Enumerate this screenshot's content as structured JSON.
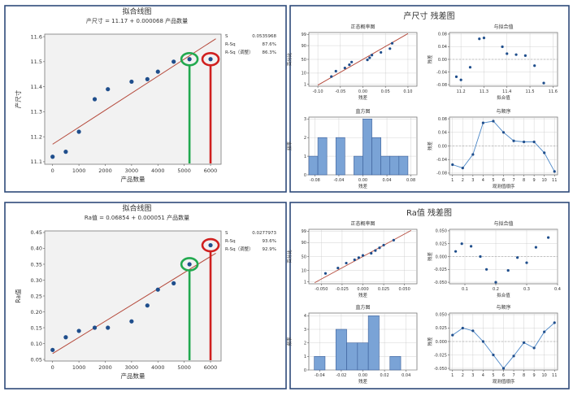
{
  "colors": {
    "frame": "#2e4a7a",
    "plot_bg": "#f2f2f2",
    "point": "#1f4e8c",
    "fit_line": "#b54a3c",
    "bar_fill": "#7aa3d6",
    "bar_stroke": "#3b5f99",
    "series_line": "#4a86c6",
    "grid": "#c8c8c8",
    "green_marker": "#22a94f",
    "red_marker": "#d0201f"
  },
  "chart_data": [
    {
      "type": "scatter",
      "id": "fit-top",
      "title": "拟合线图",
      "subtitle": "产尺寸 = 11.17 + 0.000068 产品数量",
      "xlabel": "产品数量",
      "ylabel": "产尺寸",
      "xlim": [
        -300,
        6400
      ],
      "ylim": [
        11.09,
        11.61
      ],
      "xticks": [
        0,
        1000,
        2000,
        3000,
        4000,
        5000,
        6000
      ],
      "yticks": [
        11.1,
        11.2,
        11.3,
        11.4,
        11.5,
        11.6
      ],
      "ytick_labels": [
        "11.1",
        "11.2",
        "11.3",
        "11.4",
        "11.5",
        "11.6"
      ],
      "points": [
        [
          0,
          11.12
        ],
        [
          500,
          11.14
        ],
        [
          1000,
          11.22
        ],
        [
          1600,
          11.35
        ],
        [
          2100,
          11.39
        ],
        [
          3000,
          11.42
        ],
        [
          3600,
          11.43
        ],
        [
          4000,
          11.46
        ],
        [
          4600,
          11.5
        ],
        [
          5200,
          11.51
        ],
        [
          6000,
          11.51
        ]
      ],
      "fit": {
        "intercept": 11.17,
        "slope": 6.8e-05,
        "x_range": [
          0,
          6200
        ]
      },
      "stats": [
        [
          "S",
          "0.0535968"
        ],
        [
          "R-Sq",
          "87.6%"
        ],
        [
          "R-Sq（调整）",
          "86.3%"
        ]
      ],
      "highlights": [
        {
          "x": 5200,
          "y": 11.51,
          "color": "green"
        },
        {
          "x": 6000,
          "y": 11.51,
          "color": "red"
        }
      ]
    },
    {
      "type": "scatter",
      "id": "fit-bottom",
      "title": "拟合线图",
      "subtitle": "Ra值 = 0.06854 + 0.000051 产品数量",
      "xlabel": "产品数量",
      "ylabel": "Ra值",
      "xlim": [
        -300,
        6400
      ],
      "ylim": [
        0.045,
        0.455
      ],
      "xticks": [
        0,
        1000,
        2000,
        3000,
        4000,
        5000,
        6000
      ],
      "yticks": [
        0.05,
        0.1,
        0.15,
        0.2,
        0.25,
        0.3,
        0.35,
        0.4,
        0.45
      ],
      "ytick_labels": [
        "0.05",
        "0.10",
        "0.15",
        "0.20",
        "0.25",
        "0.30",
        "0.35",
        "0.40",
        "0.45"
      ],
      "points": [
        [
          0,
          0.08
        ],
        [
          500,
          0.12
        ],
        [
          1000,
          0.14
        ],
        [
          1600,
          0.15
        ],
        [
          2100,
          0.15
        ],
        [
          3000,
          0.17
        ],
        [
          3600,
          0.22
        ],
        [
          4000,
          0.27
        ],
        [
          4600,
          0.29
        ],
        [
          5200,
          0.35
        ],
        [
          6000,
          0.41
        ]
      ],
      "fit": {
        "intercept": 0.06854,
        "slope": 5.1e-05,
        "x_range": [
          0,
          6200
        ]
      },
      "stats": [
        [
          "S",
          "0.0277973"
        ],
        [
          "R-Sq",
          "93.6%"
        ],
        [
          "R-Sq（调整）",
          "92.9%"
        ]
      ],
      "highlights": [
        {
          "x": 5200,
          "y": 0.35,
          "color": "green"
        },
        {
          "x": 6000,
          "y": 0.41,
          "color": "red"
        }
      ]
    },
    {
      "type": "scatter",
      "id": "rt-normal",
      "title": "正态概率图",
      "xlabel": "残差",
      "ylabel": "百分比",
      "xlim": [
        -0.12,
        0.12
      ],
      "ylim": [
        -2.5,
        2.5
      ],
      "xticks": [
        -0.1,
        -0.05,
        0,
        0.05,
        0.1
      ],
      "xtick_labels": [
        "-0.10",
        "-0.05",
        "0.00",
        "0.05",
        "0.10"
      ],
      "yscale": "normal-probability",
      "yticks": [
        1,
        10,
        50,
        90,
        99
      ],
      "ytick_labels": [
        "1",
        "10",
        "50",
        "90",
        "99"
      ],
      "points": [
        [
          -0.07,
          -1.6
        ],
        [
          -0.06,
          -1.1
        ],
        [
          -0.04,
          -0.8
        ],
        [
          -0.03,
          -0.5
        ],
        [
          -0.025,
          -0.25
        ],
        [
          0.01,
          -0.05
        ],
        [
          0.015,
          0.15
        ],
        [
          0.02,
          0.4
        ],
        [
          0.04,
          0.65
        ],
        [
          0.06,
          1.0
        ],
        [
          0.065,
          1.5
        ]
      ],
      "line": [
        [
          -0.1,
          -2.4
        ],
        [
          0.1,
          2.4
        ]
      ]
    },
    {
      "type": "scatter",
      "id": "rt-fits",
      "title": "与拟合值",
      "xlabel": "拟合值",
      "ylabel": "残差",
      "xlim": [
        11.15,
        11.62
      ],
      "ylim": [
        -0.085,
        0.085
      ],
      "xticks": [
        11.2,
        11.3,
        11.4,
        11.5,
        11.6
      ],
      "xtick_labels": [
        "11.2",
        "11.3",
        "11.4",
        "11.5",
        "11.6"
      ],
      "yticks": [
        -0.08,
        -0.04,
        0,
        0.04,
        0.08
      ],
      "ytick_labels": [
        "-0.08",
        "-0.04",
        "0.00",
        "0.04",
        "0.08"
      ],
      "points": [
        [
          11.18,
          -0.055
        ],
        [
          11.2,
          -0.065
        ],
        [
          11.24,
          -0.025
        ],
        [
          11.28,
          0.065
        ],
        [
          11.3,
          0.068
        ],
        [
          11.38,
          0.04
        ],
        [
          11.4,
          0.018
        ],
        [
          11.44,
          0.015
        ],
        [
          11.48,
          0.012
        ],
        [
          11.52,
          -0.02
        ],
        [
          11.56,
          -0.075
        ]
      ],
      "zero_line": true
    },
    {
      "type": "bar",
      "id": "rt-hist",
      "title": "直方图",
      "xlabel": "残差",
      "ylabel": "频率",
      "xlim": [
        -0.09,
        0.09
      ],
      "ylim": [
        0,
        3.1
      ],
      "xticks": [
        -0.08,
        -0.04,
        0,
        0.04,
        0.08
      ],
      "xtick_labels": [
        "-0.08",
        "-0.04",
        "0.00",
        "0.04",
        "0.08"
      ],
      "yticks": [
        0,
        1,
        2,
        3
      ],
      "ytick_labels": [
        "0",
        "1",
        "2",
        "3"
      ],
      "bins": [
        [
          -0.09,
          -0.075,
          1
        ],
        [
          -0.075,
          -0.06,
          2
        ],
        [
          -0.045,
          -0.03,
          2
        ],
        [
          -0.015,
          0.0,
          1
        ],
        [
          0.0,
          0.015,
          3
        ],
        [
          0.015,
          0.03,
          2
        ],
        [
          0.03,
          0.045,
          1
        ],
        [
          0.045,
          0.06,
          1
        ],
        [
          0.06,
          0.075,
          1
        ]
      ]
    },
    {
      "type": "line",
      "id": "rt-order",
      "title": "与顺序",
      "xlabel": "观测值顺序",
      "ylabel": "残差",
      "xlim": [
        0.7,
        11.3
      ],
      "ylim": [
        -0.085,
        0.085
      ],
      "xticks": [
        1,
        2,
        3,
        4,
        5,
        6,
        7,
        8,
        9,
        10,
        11
      ],
      "yticks": [
        -0.08,
        -0.04,
        0,
        0.04,
        0.08
      ],
      "ytick_labels": [
        "-0.08",
        "-0.04",
        "0.00",
        "0.04",
        "0.08"
      ],
      "points": [
        [
          1,
          -0.055
        ],
        [
          2,
          -0.065
        ],
        [
          3,
          -0.025
        ],
        [
          4,
          0.068
        ],
        [
          5,
          0.073
        ],
        [
          6,
          0.04
        ],
        [
          7,
          0.015
        ],
        [
          8,
          0.012
        ],
        [
          9,
          0.012
        ],
        [
          10,
          -0.02
        ],
        [
          11,
          -0.075
        ]
      ],
      "zero_line": true
    },
    {
      "type": "scatter",
      "id": "rb-normal",
      "title": "正态概率图",
      "xlabel": "残差",
      "ylabel": "百分比",
      "xlim": [
        -0.065,
        0.065
      ],
      "ylim": [
        -2.5,
        2.5
      ],
      "xticks": [
        -0.05,
        -0.025,
        0,
        0.025,
        0.05
      ],
      "xtick_labels": [
        "-0.050",
        "-0.025",
        "0.000",
        "0.025",
        "0.050"
      ],
      "yscale": "normal-probability",
      "yticks": [
        1,
        10,
        50,
        90,
        99
      ],
      "ytick_labels": [
        "1",
        "10",
        "50",
        "90",
        "99"
      ],
      "points": [
        [
          -0.045,
          -1.55
        ],
        [
          -0.03,
          -1.05
        ],
        [
          -0.02,
          -0.6
        ],
        [
          -0.01,
          -0.3
        ],
        [
          -0.005,
          -0.1
        ],
        [
          0.0,
          0.1
        ],
        [
          0.01,
          0.3
        ],
        [
          0.015,
          0.55
        ],
        [
          0.02,
          0.8
        ],
        [
          0.025,
          1.05
        ],
        [
          0.037,
          1.5
        ]
      ],
      "line": [
        [
          -0.058,
          -2.4
        ],
        [
          0.058,
          2.4
        ]
      ]
    },
    {
      "type": "scatter",
      "id": "rb-fits",
      "title": "与拟合值",
      "xlabel": "拟合值",
      "ylabel": "残差",
      "xlim": [
        0.05,
        0.4
      ],
      "ylim": [
        -0.053,
        0.053
      ],
      "xticks": [
        0.1,
        0.2,
        0.3,
        0.4
      ],
      "xtick_labels": [
        "0.1",
        "0.2",
        "0.3",
        "0.4"
      ],
      "yticks": [
        -0.05,
        -0.025,
        0,
        0.025,
        0.05
      ],
      "ytick_labels": [
        "-0.050",
        "-0.025",
        "0.000",
        "0.025",
        "0.050"
      ],
      "points": [
        [
          0.07,
          0.01
        ],
        [
          0.09,
          0.025
        ],
        [
          0.12,
          0.02
        ],
        [
          0.15,
          0.0
        ],
        [
          0.17,
          -0.025
        ],
        [
          0.2,
          -0.05
        ],
        [
          0.24,
          -0.027
        ],
        [
          0.27,
          -0.002
        ],
        [
          0.3,
          -0.012
        ],
        [
          0.33,
          0.018
        ],
        [
          0.37,
          0.037
        ]
      ],
      "zero_line": true
    },
    {
      "type": "bar",
      "id": "rb-hist",
      "title": "直方图",
      "xlabel": "残差",
      "ylabel": "频率",
      "xlim": [
        -0.05,
        0.05
      ],
      "ylim": [
        0,
        4.2
      ],
      "xticks": [
        -0.04,
        -0.02,
        0,
        0.02,
        0.04
      ],
      "xtick_labels": [
        "-0.04",
        "-0.02",
        "0.00",
        "0.02",
        "0.04"
      ],
      "yticks": [
        0,
        1,
        2,
        3,
        4
      ],
      "ytick_labels": [
        "0",
        "1",
        "2",
        "3",
        "4"
      ],
      "bins": [
        [
          -0.045,
          -0.035,
          1
        ],
        [
          -0.025,
          -0.015,
          3
        ],
        [
          -0.015,
          -0.005,
          2
        ],
        [
          -0.005,
          0.005,
          2
        ],
        [
          0.005,
          0.015,
          4
        ],
        [
          0.025,
          0.035,
          1
        ]
      ]
    },
    {
      "type": "line",
      "id": "rb-order",
      "title": "与顺序",
      "xlabel": "观测值顺序",
      "ylabel": "残差",
      "xlim": [
        0.7,
        11.3
      ],
      "ylim": [
        -0.053,
        0.053
      ],
      "xticks": [
        1,
        2,
        3,
        4,
        5,
        6,
        7,
        8,
        9,
        10,
        11
      ],
      "yticks": [
        -0.05,
        -0.025,
        0,
        0.025,
        0.05
      ],
      "ytick_labels": [
        "-0.050",
        "-0.025",
        "0.000",
        "0.025",
        "0.050"
      ],
      "points": [
        [
          1,
          0.012
        ],
        [
          2,
          0.025
        ],
        [
          3,
          0.02
        ],
        [
          4,
          0.0
        ],
        [
          5,
          -0.025
        ],
        [
          6,
          -0.05
        ],
        [
          7,
          -0.027
        ],
        [
          8,
          -0.002
        ],
        [
          9,
          -0.012
        ],
        [
          10,
          0.018
        ],
        [
          11,
          0.035
        ]
      ],
      "zero_line": true
    }
  ],
  "panels": {
    "top_right_title": "产尺寸 残差图",
    "bottom_right_title": "Ra值 残差图"
  }
}
